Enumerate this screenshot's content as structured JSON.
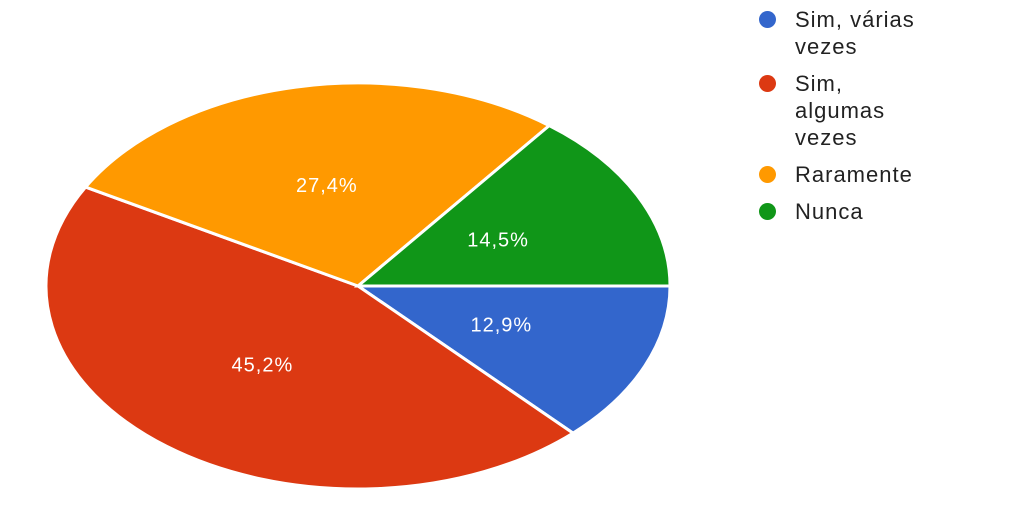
{
  "chart_data": {
    "type": "pie",
    "categories": [
      "Sim, várias vezes",
      "Sim, algumas vezes",
      "Raramente",
      "Nunca"
    ],
    "values": [
      12.9,
      45.2,
      27.4,
      14.5
    ],
    "value_labels": [
      "12,9%",
      "45,2%",
      "27,4%",
      "14,5%"
    ],
    "colors": [
      "#3366cc",
      "#dc3912",
      "#ff9900",
      "#109618"
    ],
    "legend": "right"
  }
}
